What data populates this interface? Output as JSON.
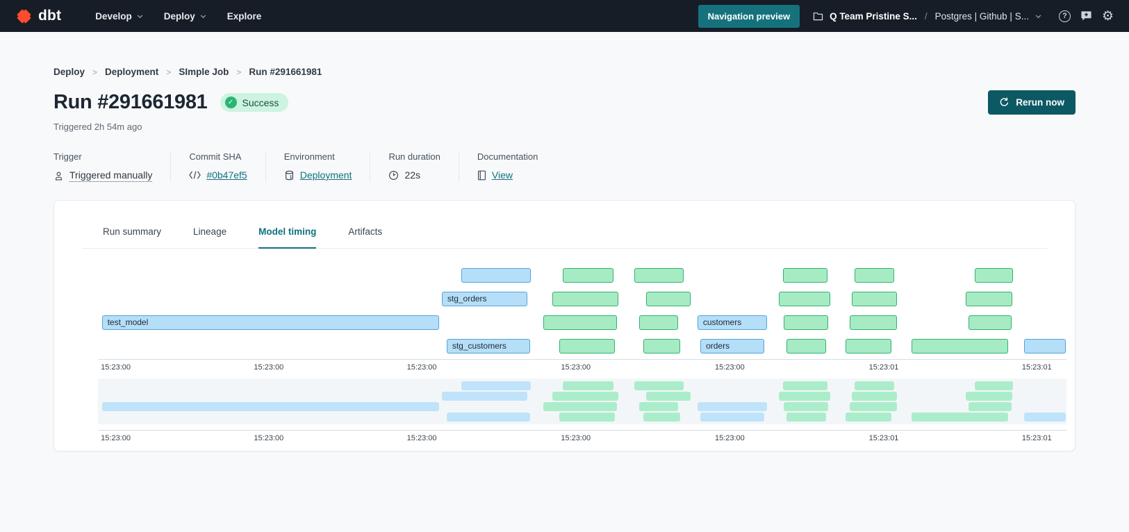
{
  "nav": {
    "brand": "dbt",
    "menus": [
      {
        "label": "Develop",
        "chevron": true
      },
      {
        "label": "Deploy",
        "chevron": true
      },
      {
        "label": "Explore",
        "chevron": false
      }
    ],
    "preview_button_label": "Navigation preview",
    "project_name": "Q Team Pristine S...",
    "path_separator": "/",
    "environment_name": "Postgres | Github | S...",
    "icon_buttons": [
      "help-icon",
      "feedback-icon",
      "settings-icon"
    ]
  },
  "breadcrumb": [
    "Deploy",
    "Deployment",
    "SImple Job",
    "Run #291661981"
  ],
  "header": {
    "title": "Run #291661981",
    "status_badge": "Success",
    "triggered_text": "Triggered 2h 54m ago",
    "rerun_button_label": "Rerun now"
  },
  "meta": [
    {
      "label": "Trigger",
      "value": "Triggered manually",
      "icon": "person-icon",
      "value_style": "dotted"
    },
    {
      "label": "Commit SHA",
      "value": "#0b47ef5",
      "icon": "code-icon",
      "value_style": "link"
    },
    {
      "label": "Environment",
      "value": "Deployment",
      "icon": "database-icon",
      "value_style": "link"
    },
    {
      "label": "Run duration",
      "value": "22s",
      "icon": "clock-icon",
      "value_style": "plain"
    },
    {
      "label": "Documentation",
      "value": "View",
      "icon": "document-icon",
      "value_style": "link"
    }
  ],
  "tabs": [
    {
      "label": "Run summary",
      "active": false
    },
    {
      "label": "Lineage",
      "active": false
    },
    {
      "label": "Model timing",
      "active": true
    },
    {
      "label": "Artifacts",
      "active": false
    }
  ],
  "chart_data": {
    "type": "gantt",
    "title": "Model timing",
    "x_tick_labels": [
      "15:23:00",
      "15:23:00",
      "15:23:00",
      "15:23:00",
      "15:23:00",
      "15:23:01",
      "15:23:01"
    ],
    "x_tick_positions_pct": [
      0.3,
      16.1,
      31.9,
      47.8,
      63.7,
      79.6,
      95.4
    ],
    "rows": [
      {
        "bars": [
          {
            "label": "",
            "color": "blue",
            "start_pct": 37.5,
            "end_pct": 44.7
          },
          {
            "label": "",
            "color": "green",
            "start_pct": 48.0,
            "end_pct": 53.2
          },
          {
            "label": "",
            "color": "green",
            "start_pct": 55.4,
            "end_pct": 60.5
          },
          {
            "label": "",
            "color": "green",
            "start_pct": 70.7,
            "end_pct": 75.3
          },
          {
            "label": "",
            "color": "green",
            "start_pct": 78.1,
            "end_pct": 82.2
          },
          {
            "label": "",
            "color": "green",
            "start_pct": 90.5,
            "end_pct": 94.5
          }
        ]
      },
      {
        "bars": [
          {
            "label": "stg_orders",
            "color": "blue",
            "start_pct": 35.5,
            "end_pct": 44.3
          },
          {
            "label": "",
            "color": "green",
            "start_pct": 46.9,
            "end_pct": 53.7
          },
          {
            "label": "",
            "color": "green",
            "start_pct": 56.6,
            "end_pct": 61.2
          },
          {
            "label": "",
            "color": "green",
            "start_pct": 70.3,
            "end_pct": 75.6
          },
          {
            "label": "",
            "color": "green",
            "start_pct": 77.8,
            "end_pct": 82.5
          },
          {
            "label": "",
            "color": "green",
            "start_pct": 89.6,
            "end_pct": 94.4
          }
        ]
      },
      {
        "bars": [
          {
            "label": "test_model",
            "color": "blue",
            "start_pct": 0.4,
            "end_pct": 35.2
          },
          {
            "label": "",
            "color": "green",
            "start_pct": 46.0,
            "end_pct": 53.6
          },
          {
            "label": "",
            "color": "green",
            "start_pct": 55.9,
            "end_pct": 59.9
          },
          {
            "label": "customers",
            "color": "blue",
            "start_pct": 61.9,
            "end_pct": 69.1
          },
          {
            "label": "",
            "color": "green",
            "start_pct": 70.8,
            "end_pct": 75.4
          },
          {
            "label": "",
            "color": "green",
            "start_pct": 77.6,
            "end_pct": 82.5
          },
          {
            "label": "",
            "color": "green",
            "start_pct": 89.9,
            "end_pct": 94.3
          }
        ]
      },
      {
        "bars": [
          {
            "label": "stg_customers",
            "color": "blue",
            "start_pct": 36.0,
            "end_pct": 44.6
          },
          {
            "label": "",
            "color": "green",
            "start_pct": 47.6,
            "end_pct": 53.4
          },
          {
            "label": "",
            "color": "green",
            "start_pct": 56.3,
            "end_pct": 60.1
          },
          {
            "label": "orders",
            "color": "blue",
            "start_pct": 62.2,
            "end_pct": 68.8
          },
          {
            "label": "",
            "color": "green",
            "start_pct": 71.1,
            "end_pct": 75.2
          },
          {
            "label": "",
            "color": "green",
            "start_pct": 77.2,
            "end_pct": 81.9
          },
          {
            "label": "",
            "color": "green",
            "start_pct": 84.0,
            "end_pct": 94.0
          },
          {
            "label": "",
            "color": "blue",
            "start_pct": 95.6,
            "end_pct": 99.9
          }
        ]
      }
    ],
    "minimap": {
      "mirrors_rows": true,
      "x_tick_labels": [
        "15:23:00",
        "15:23:00",
        "15:23:00",
        "15:23:00",
        "15:23:00",
        "15:23:01",
        "15:23:01"
      ]
    }
  },
  "colors": {
    "nav_bg": "#161d27",
    "accent_teal": "#0e7180",
    "button_teal_dark": "#0c5964",
    "preview_button_teal": "#15727d",
    "success_bg": "#cdf3e1",
    "success_dot": "#29b573",
    "bar_blue_fill": "#b5def8",
    "bar_blue_border": "#54a3d8",
    "bar_green_fill": "#a7ebc5",
    "bar_green_border": "#2fb368",
    "mini_blue": "#bfe3fa",
    "mini_green": "#abedca",
    "page_bg": "#f8f9fa",
    "logo_orange": "#ff4b2e"
  }
}
